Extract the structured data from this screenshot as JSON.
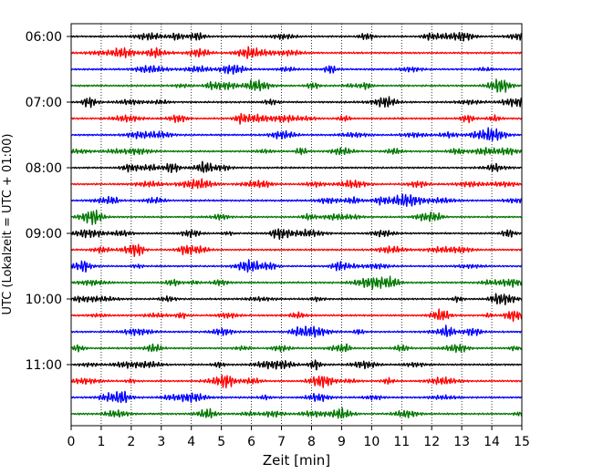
{
  "chart_data": {
    "type": "line",
    "title": "",
    "xlabel": "Zeit  [min]",
    "ylabel": "UTC (Lokalzeit = UTC + 01:00)",
    "xlim": [
      0,
      15
    ],
    "x_ticks": [
      0,
      1,
      2,
      3,
      4,
      5,
      6,
      7,
      8,
      9,
      10,
      11,
      12,
      13,
      14,
      15
    ],
    "x_tick_labels": [
      "0",
      "1",
      "2",
      "3",
      "4",
      "5",
      "6",
      "7",
      "8",
      "9",
      "10",
      "11",
      "12",
      "13",
      "14",
      "15"
    ],
    "y_tick_labels": [
      "06:00",
      "07:00",
      "08:00",
      "09:00",
      "10:00",
      "11:00"
    ],
    "grid": "vertical dotted lines at each minute",
    "trace_interval_minutes": 15,
    "trace_start": "06:00",
    "trace_count": 24,
    "series_colors": [
      "#000000",
      "#ff0000",
      "#0000ff",
      "#007700"
    ],
    "series_pattern": "traces cycle black, red, blue, green"
  }
}
